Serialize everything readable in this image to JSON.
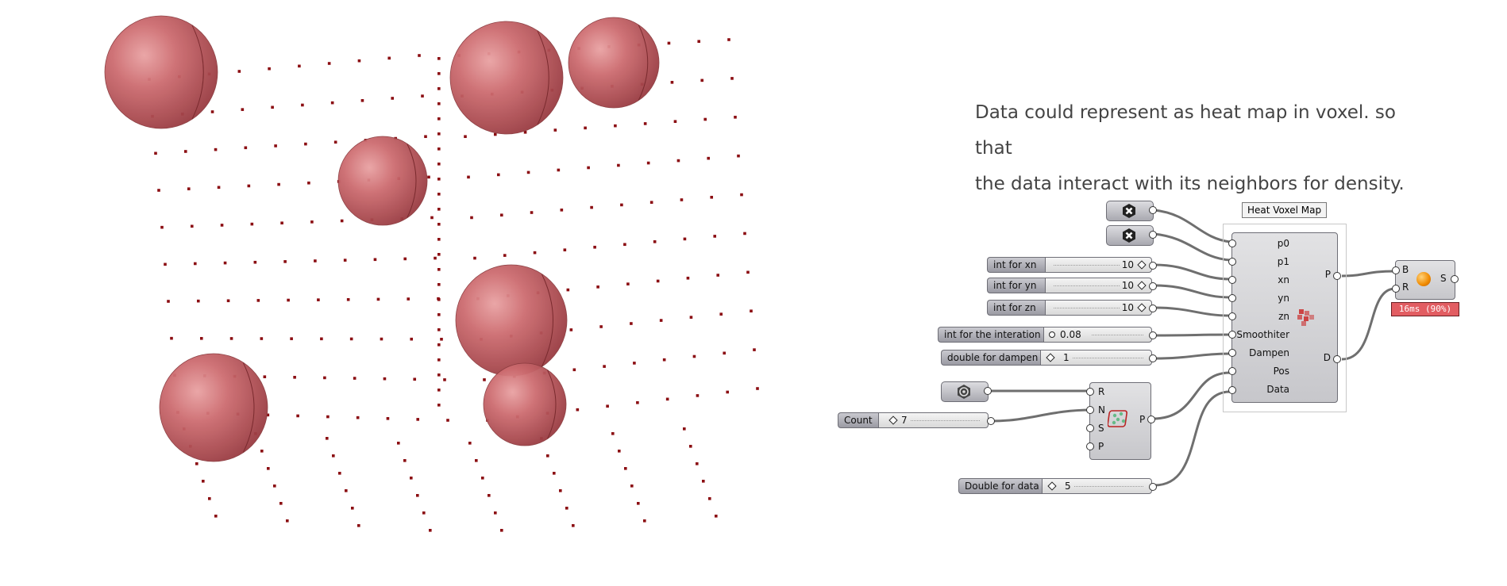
{
  "caption": {
    "line1": "Data could represent as heat map in voxel. so that",
    "line2": "the data interact with its neighbors for density."
  },
  "sliders": {
    "xn": {
      "label": "int for xn",
      "value": "10"
    },
    "yn": {
      "label": "int for yn",
      "value": "10"
    },
    "zn": {
      "label": "int for zn",
      "value": "10"
    },
    "iteration": {
      "label": "int for the interation",
      "value": "0.08"
    },
    "dampen": {
      "label": "double for dampen",
      "value": "1"
    },
    "count": {
      "label": "Count",
      "value": "7"
    },
    "data": {
      "label": "Double for data",
      "value": "5"
    }
  },
  "heat_component": {
    "title": "Heat Voxel Map",
    "inputs": [
      "p0",
      "p1",
      "xn",
      "yn",
      "zn",
      "Smoothiter",
      "Dampen",
      "Pos",
      "Data"
    ],
    "outputs": [
      "P",
      "D"
    ]
  },
  "populate_component": {
    "inputs": [
      "R",
      "N",
      "S",
      "P"
    ],
    "output": "P"
  },
  "preview_component": {
    "inputs": [
      "B",
      "R"
    ],
    "output": "S"
  },
  "timer_text": "16ms (90%)",
  "colors": {
    "sphere": "#c96468",
    "dot": "#8b0d12",
    "wire": "#6f6f6f",
    "timer": "#e25d62"
  }
}
